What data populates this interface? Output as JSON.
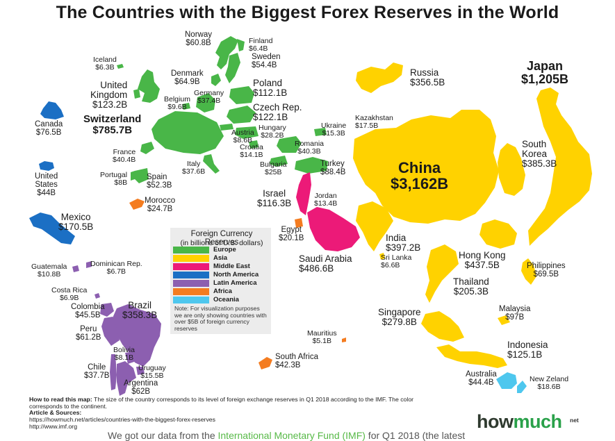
{
  "title": "The Countries with the Biggest Forex Reserves in the World",
  "colors": {
    "Europe": "#49b648",
    "Asia": "#ffd200",
    "Middle East": "#ec1a78",
    "North America": "#1b6fc4",
    "Latin America": "#8c5fb0",
    "Africa": "#f47c20",
    "Oceania": "#4ec7ee"
  },
  "legend": {
    "title": "Foreign Currency Reserves",
    "subtitle": "(in billions of U.S. dollars)",
    "items": [
      {
        "label": "Europe",
        "region": "Europe"
      },
      {
        "label": "Asia",
        "region": "Asia"
      },
      {
        "label": "Middle East",
        "region": "Middle East"
      },
      {
        "label": "North America",
        "region": "North America"
      },
      {
        "label": "Latin America",
        "region": "Latin America"
      },
      {
        "label": "Africa",
        "region": "Africa"
      },
      {
        "label": "Oceania",
        "region": "Oceania"
      }
    ],
    "note": "Note: For visualization purposes we are only showing countries with over $5B of foreign currency reserves"
  },
  "countries": [
    {
      "id": "norway",
      "name": "Norway",
      "value": "$60.8B",
      "region": "Europe"
    },
    {
      "id": "finland",
      "name": "Finland",
      "value": "$6.4B",
      "region": "Europe"
    },
    {
      "id": "iceland",
      "name": "Iceland",
      "value": "$6.3B",
      "region": "Europe"
    },
    {
      "id": "sweden",
      "name": "Sweden",
      "value": "$54.4B",
      "region": "Europe"
    },
    {
      "id": "denmark",
      "name": "Denmark",
      "value": "$64.9B",
      "region": "Europe"
    },
    {
      "id": "poland",
      "name": "Poland",
      "value": "$112.1B",
      "region": "Europe"
    },
    {
      "id": "uk",
      "name": "United\nKingdom",
      "value": "$123.2B",
      "region": "Europe"
    },
    {
      "id": "germany",
      "name": "Germany",
      "value": "$37.4B",
      "region": "Europe"
    },
    {
      "id": "belgium",
      "name": "Belgium",
      "value": "$9.6B",
      "region": "Europe"
    },
    {
      "id": "czech",
      "name": "Czech Rep.",
      "value": "$122.1B",
      "region": "Europe"
    },
    {
      "id": "switzerland",
      "name": "Switzerland",
      "value": "$785.7B",
      "region": "Europe"
    },
    {
      "id": "austria",
      "name": "Austria",
      "value": "$8.6B",
      "region": "Europe"
    },
    {
      "id": "hungary",
      "name": "Hungary",
      "value": "$28.2B",
      "region": "Europe"
    },
    {
      "id": "ukraine",
      "name": "Ukraine",
      "value": "$15.3B",
      "region": "Europe"
    },
    {
      "id": "croatia",
      "name": "Croatia",
      "value": "$14.1B",
      "region": "Europe"
    },
    {
      "id": "romania",
      "name": "Romania",
      "value": "$40.3B",
      "region": "Europe"
    },
    {
      "id": "france",
      "name": "France",
      "value": "$40.4B",
      "region": "Europe"
    },
    {
      "id": "italy",
      "name": "Italy",
      "value": "$37.6B",
      "region": "Europe"
    },
    {
      "id": "bulgaria",
      "name": "Bulgaria",
      "value": "$25B",
      "region": "Europe"
    },
    {
      "id": "turkey",
      "name": "Turkey",
      "value": "$88.4B",
      "region": "Europe"
    },
    {
      "id": "portugal",
      "name": "Portugal",
      "value": "$8B",
      "region": "Europe"
    },
    {
      "id": "spain",
      "name": "Spain",
      "value": "$52.3B",
      "region": "Europe"
    },
    {
      "id": "russia",
      "name": "Russia",
      "value": "$356.5B",
      "region": "Asia"
    },
    {
      "id": "japan",
      "name": "Japan",
      "value": "$1,205B",
      "region": "Asia"
    },
    {
      "id": "kazakhstan",
      "name": "Kazakhstan",
      "value": "$17.5B",
      "region": "Asia"
    },
    {
      "id": "south_korea",
      "name": "South\nKorea",
      "value": "$385.3B",
      "region": "Asia"
    },
    {
      "id": "china",
      "name": "China",
      "value": "$3,162B",
      "region": "Asia"
    },
    {
      "id": "india",
      "name": "India",
      "value": "$397.2B",
      "region": "Asia"
    },
    {
      "id": "sri_lanka",
      "name": "Sri Lanka",
      "value": "$6.6B",
      "region": "Asia"
    },
    {
      "id": "hong_kong",
      "name": "Hong Kong",
      "value": "$437.5B",
      "region": "Asia"
    },
    {
      "id": "philippines",
      "name": "Philippines",
      "value": "$69.5B",
      "region": "Asia"
    },
    {
      "id": "thailand",
      "name": "Thailand",
      "value": "$205.3B",
      "region": "Asia"
    },
    {
      "id": "malaysia",
      "name": "Malaysia",
      "value": "$97B",
      "region": "Asia"
    },
    {
      "id": "singapore",
      "name": "Singapore",
      "value": "$279.8B",
      "region": "Asia"
    },
    {
      "id": "indonesia",
      "name": "Indonesia",
      "value": "$125.1B",
      "region": "Asia"
    },
    {
      "id": "israel",
      "name": "Israel",
      "value": "$116.3B",
      "region": "Middle East"
    },
    {
      "id": "jordan",
      "name": "Jordan",
      "value": "$13.4B",
      "region": "Middle East"
    },
    {
      "id": "saudi_arabia",
      "name": "Saudi Arabia",
      "value": "$486.6B",
      "region": "Middle East"
    },
    {
      "id": "canada",
      "name": "Canada",
      "value": "$76.5B",
      "region": "North America"
    },
    {
      "id": "united_states",
      "name": "United\nStates",
      "value": "$44B",
      "region": "North America"
    },
    {
      "id": "mexico",
      "name": "Mexico",
      "value": "$170.5B",
      "region": "North America"
    },
    {
      "id": "guatemala",
      "name": "Guatemala",
      "value": "$10.8B",
      "region": "Latin America"
    },
    {
      "id": "dominican_rep",
      "name": "Dominican Rep.",
      "value": "$6.7B",
      "region": "Latin America"
    },
    {
      "id": "costa_rica",
      "name": "Costa Rica",
      "value": "$6.9B",
      "region": "Latin America"
    },
    {
      "id": "colombia",
      "name": "Colombia",
      "value": "$45.5B",
      "region": "Latin America"
    },
    {
      "id": "brazil",
      "name": "Brazil",
      "value": "$358.3B",
      "region": "Latin America"
    },
    {
      "id": "peru",
      "name": "Peru",
      "value": "$61.2B",
      "region": "Latin America"
    },
    {
      "id": "bolivia",
      "name": "Bolivia",
      "value": "$8.1B",
      "region": "Latin America"
    },
    {
      "id": "uruguay",
      "name": "Uruguay",
      "value": "$15.5B",
      "region": "Latin America"
    },
    {
      "id": "chile",
      "name": "Chile",
      "value": "$37.7B",
      "region": "Latin America"
    },
    {
      "id": "argentina",
      "name": "Argentina",
      "value": "$62B",
      "region": "Latin America"
    },
    {
      "id": "morocco",
      "name": "Morocco",
      "value": "$24.7B",
      "region": "Africa"
    },
    {
      "id": "egypt",
      "name": "Egypt",
      "value": "$20.1B",
      "region": "Africa"
    },
    {
      "id": "mauritius",
      "name": "Mauritius",
      "value": "$5.1B",
      "region": "Africa"
    },
    {
      "id": "south_africa",
      "name": "South Africa",
      "value": "$42.3B",
      "region": "Africa"
    },
    {
      "id": "australia",
      "name": "Australia",
      "value": "$44.4B",
      "region": "Oceania"
    },
    {
      "id": "new_zeland",
      "name": "New Zeland",
      "value": "$18.6B",
      "region": "Oceania"
    }
  ],
  "footer": {
    "how_to_read_label": "How to read this map:",
    "how_to_read_text": " The size of the country corresponds to its level of foreign exchange reserves in Q1 2018 according to the IMF. The color corresponds to the continent.",
    "sources_label": "Article & Sources:",
    "source_1": "https://howmuch.net/articles/countries-with-the-biggest-forex-reserves",
    "source_2": "http://www.imf.org"
  },
  "brand": {
    "part1": "how",
    "part2": "much",
    "tld": "net"
  },
  "cut_text": {
    "before": "We got our data from the ",
    "highlight": "International Monetary Fund (IMF)",
    "after": " for Q1 2018 (the latest"
  }
}
